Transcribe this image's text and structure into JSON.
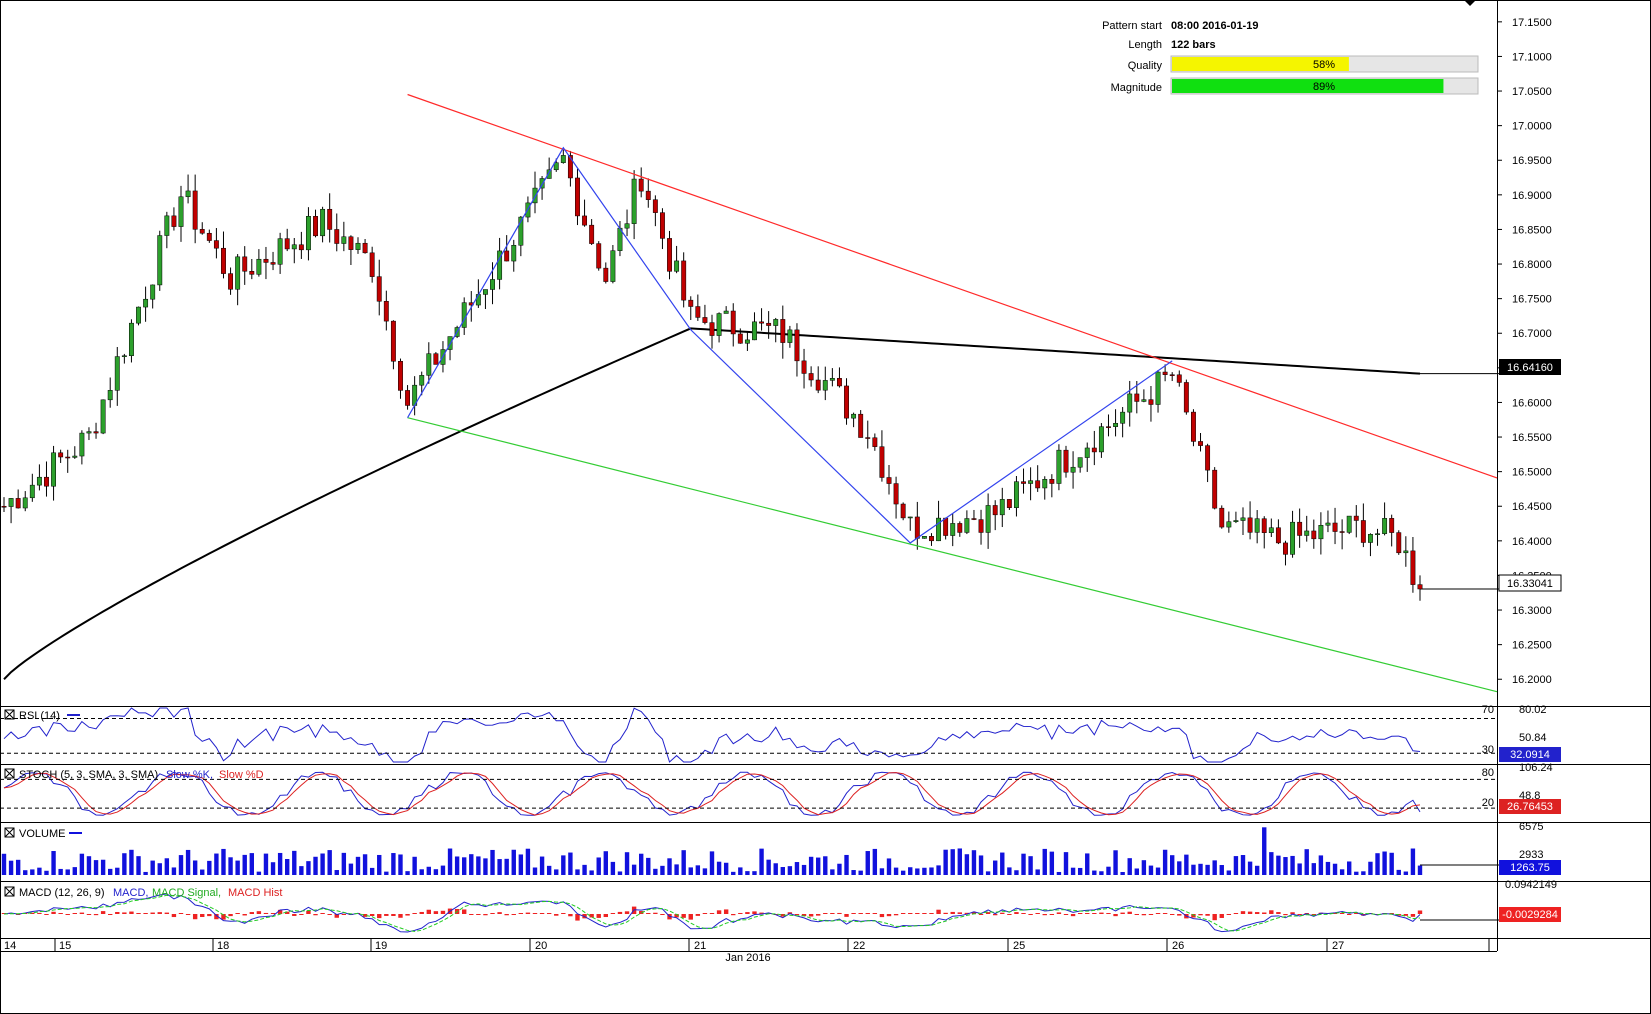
{
  "colors": {
    "bull": "#2ca02c",
    "bear": "#c00000",
    "ma": "#000000",
    "resistance": "#ff2a2a",
    "support": "#33cc33",
    "pattern": "#3344ee",
    "rsi": "#2222cc",
    "stoch_k": "#2222cc",
    "stoch_d": "#dd2222",
    "volume": "#1111dd",
    "macd": "#2222cc",
    "signal": "#22cc22",
    "hist": "#ee2222",
    "quality_fill": "#f5f500",
    "magnitude_fill": "#10e010"
  },
  "info": {
    "pattern_start_label": "Pattern start",
    "pattern_start_value": "08:00 2016-01-19",
    "length_label": "Length",
    "length_value": "122 bars",
    "quality_label": "Quality",
    "quality_value": "58%",
    "quality_pct": 58,
    "magnitude_label": "Magnitude",
    "magnitude_value": "89%",
    "magnitude_pct": 89
  },
  "price_axis": {
    "min": 16.17,
    "max": 17.17,
    "ticks": [
      "17.1500",
      "17.1000",
      "17.0500",
      "17.0000",
      "16.9500",
      "16.9000",
      "16.8500",
      "16.8000",
      "16.7500",
      "16.7000",
      "16.6500",
      "16.6000",
      "16.5500",
      "16.5000",
      "16.4500",
      "16.4000",
      "16.3500",
      "16.3000",
      "16.2500",
      "16.2000"
    ],
    "ma_label": "16.64160",
    "last_label": "16.33041"
  },
  "panels": {
    "rsi": {
      "title": "RSI (14)",
      "ticks": [
        "80.02",
        "70",
        "50.84",
        "30"
      ],
      "value": "32.0914"
    },
    "stoch": {
      "title": "STOCH (5, 3, SMA, 3, SMA)",
      "k_label": "Slow %K,",
      "d_label": "Slow %D",
      "ticks": [
        "106.24",
        "80",
        "48.8",
        "20"
      ],
      "value": "26.76453"
    },
    "volume": {
      "title": "VOLUME",
      "ticks": [
        "6575",
        "2933"
      ],
      "value": "1263.75"
    },
    "macd": {
      "title": "MACD (12, 26, 9)",
      "macd_label": "MACD,",
      "signal_label": "MACD Signal,",
      "hist_label": "MACD Hist",
      "ticks": [
        "0.0942149"
      ],
      "value": "-0.0029284"
    }
  },
  "x_axis": {
    "labels": [
      "14",
      "15",
      "18",
      "19",
      "20",
      "21",
      "22",
      "25",
      "26",
      "27"
    ],
    "month_label": "Jan 2016"
  },
  "chart_data": {
    "type": "candlestick",
    "title": "",
    "y_range": [
      16.17,
      17.17
    ],
    "bars": 201,
    "ohlc_start": 16.45,
    "pattern": {
      "name": "Channel Down",
      "start": "08:00 2016-01-19",
      "length_bars": 122,
      "quality_pct": 58,
      "magnitude_pct": 89,
      "resistance_line": [
        {
          "bar": 57,
          "price": 17.045
        },
        {
          "bar": 200,
          "price": 16.53
        }
      ],
      "support_line": [
        {
          "bar": 57,
          "price": 16.578
        },
        {
          "bar": 200,
          "price": 16.21
        }
      ],
      "zigzag": [
        {
          "bar": 57,
          "price": 16.578
        },
        {
          "bar": 79,
          "price": 16.968
        },
        {
          "bar": 97,
          "price": 16.705
        },
        {
          "bar": 128,
          "price": 16.397
        },
        {
          "bar": 165,
          "price": 16.66
        }
      ]
    },
    "moving_average_last": 16.6416,
    "last_close": 16.33041,
    "rsi_last": 32.0914,
    "stoch_last": 26.76453,
    "volume_last": 1263.75,
    "macd_last": -0.0029284
  }
}
